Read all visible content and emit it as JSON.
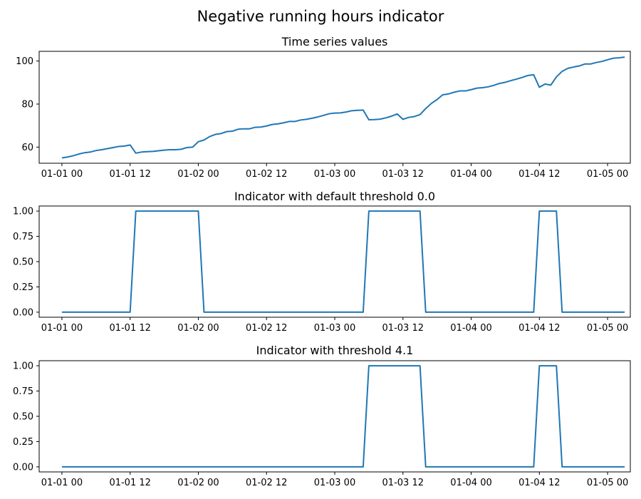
{
  "figure": {
    "title": "Negative running hours indicator"
  },
  "chart_data": [
    {
      "type": "line",
      "title": "Time series values",
      "xlabel": "",
      "ylabel": "",
      "x_start": "2020-01-01 00:00",
      "x_step_hours": 1,
      "xlim": [
        "2019-12-31 20:00",
        "2020-01-05 04:00"
      ],
      "ylim": [
        52.5,
        104.5
      ],
      "x_ticks": [
        "01-01 00",
        "01-01 12",
        "01-02 00",
        "01-02 12",
        "01-03 00",
        "01-03 12",
        "01-04 00",
        "01-04 12",
        "01-05 00"
      ],
      "y_ticks": [
        "60",
        "80",
        "100"
      ],
      "y_tick_values": [
        60,
        80,
        100
      ],
      "grid": false,
      "color": "#1f77b4",
      "values": [
        55.0,
        55.4,
        56.0,
        56.8,
        57.4,
        57.7,
        58.4,
        58.8,
        59.3,
        59.8,
        60.3,
        60.5,
        61.0,
        57.2,
        57.7,
        57.9,
        58.0,
        58.3,
        58.6,
        58.8,
        58.8,
        59.0,
        59.8,
        60.0,
        62.5,
        63.3,
        64.9,
        65.9,
        66.3,
        67.2,
        67.4,
        68.3,
        68.5,
        68.5,
        69.2,
        69.3,
        69.8,
        70.5,
        70.8,
        71.3,
        71.9,
        71.9,
        72.6,
        72.9,
        73.4,
        74.0,
        74.7,
        75.5,
        75.8,
        75.9,
        76.3,
        76.9,
        77.1,
        77.2,
        72.7,
        72.8,
        73.0,
        73.6,
        74.4,
        75.4,
        72.9,
        73.8,
        74.2,
        75.1,
        77.9,
        80.3,
        82.1,
        84.3,
        84.7,
        85.5,
        86.1,
        86.1,
        86.7,
        87.4,
        87.6,
        88.0,
        88.7,
        89.6,
        90.1,
        90.9,
        91.6,
        92.4,
        93.3,
        93.6,
        87.8,
        89.3,
        88.8,
        92.6,
        95.2,
        96.6,
        97.2,
        97.7,
        98.6,
        98.6,
        99.3,
        99.8,
        100.6,
        101.3,
        101.5,
        101.8
      ]
    },
    {
      "type": "line",
      "title": "Indicator with default threshold 0.0",
      "xlabel": "",
      "ylabel": "",
      "x_start": "2020-01-01 00:00",
      "x_step_hours": 1,
      "xlim": [
        "2019-12-31 20:00",
        "2020-01-05 04:00"
      ],
      "ylim": [
        -0.05,
        1.05
      ],
      "x_ticks": [
        "01-01 00",
        "01-01 12",
        "01-02 00",
        "01-02 12",
        "01-03 00",
        "01-03 12",
        "01-04 00",
        "01-04 12",
        "01-05 00"
      ],
      "y_ticks": [
        "0.00",
        "0.25",
        "0.50",
        "0.75",
        "1.00"
      ],
      "y_tick_values": [
        0,
        0.25,
        0.5,
        0.75,
        1.0
      ],
      "grid": false,
      "color": "#1f77b4",
      "values": [
        0,
        0,
        0,
        0,
        0,
        0,
        0,
        0,
        0,
        0,
        0,
        0,
        0,
        1,
        1,
        1,
        1,
        1,
        1,
        1,
        1,
        1,
        1,
        1,
        1,
        0,
        0,
        0,
        0,
        0,
        0,
        0,
        0,
        0,
        0,
        0,
        0,
        0,
        0,
        0,
        0,
        0,
        0,
        0,
        0,
        0,
        0,
        0,
        0,
        0,
        0,
        0,
        0,
        0,
        1,
        1,
        1,
        1,
        1,
        1,
        1,
        1,
        1,
        1,
        0,
        0,
        0,
        0,
        0,
        0,
        0,
        0,
        0,
        0,
        0,
        0,
        0,
        0,
        0,
        0,
        0,
        0,
        0,
        0,
        1,
        1,
        1,
        1,
        0,
        0,
        0,
        0,
        0,
        0,
        0,
        0,
        0,
        0,
        0,
        0
      ]
    },
    {
      "type": "line",
      "title": "Indicator with threshold 4.1",
      "xlabel": "",
      "ylabel": "",
      "x_start": "2020-01-01 00:00",
      "x_step_hours": 1,
      "xlim": [
        "2019-12-31 20:00",
        "2020-01-05 04:00"
      ],
      "ylim": [
        -0.05,
        1.05
      ],
      "x_ticks": [
        "01-01 00",
        "01-01 12",
        "01-02 00",
        "01-02 12",
        "01-03 00",
        "01-03 12",
        "01-04 00",
        "01-04 12",
        "01-05 00"
      ],
      "y_ticks": [
        "0.00",
        "0.25",
        "0.50",
        "0.75",
        "1.00"
      ],
      "y_tick_values": [
        0,
        0.25,
        0.5,
        0.75,
        1.0
      ],
      "grid": false,
      "color": "#1f77b4",
      "values": [
        0,
        0,
        0,
        0,
        0,
        0,
        0,
        0,
        0,
        0,
        0,
        0,
        0,
        0,
        0,
        0,
        0,
        0,
        0,
        0,
        0,
        0,
        0,
        0,
        0,
        0,
        0,
        0,
        0,
        0,
        0,
        0,
        0,
        0,
        0,
        0,
        0,
        0,
        0,
        0,
        0,
        0,
        0,
        0,
        0,
        0,
        0,
        0,
        0,
        0,
        0,
        0,
        0,
        0,
        1,
        1,
        1,
        1,
        1,
        1,
        1,
        1,
        1,
        1,
        0,
        0,
        0,
        0,
        0,
        0,
        0,
        0,
        0,
        0,
        0,
        0,
        0,
        0,
        0,
        0,
        0,
        0,
        0,
        0,
        1,
        1,
        1,
        1,
        0,
        0,
        0,
        0,
        0,
        0,
        0,
        0,
        0,
        0,
        0,
        0
      ]
    }
  ]
}
